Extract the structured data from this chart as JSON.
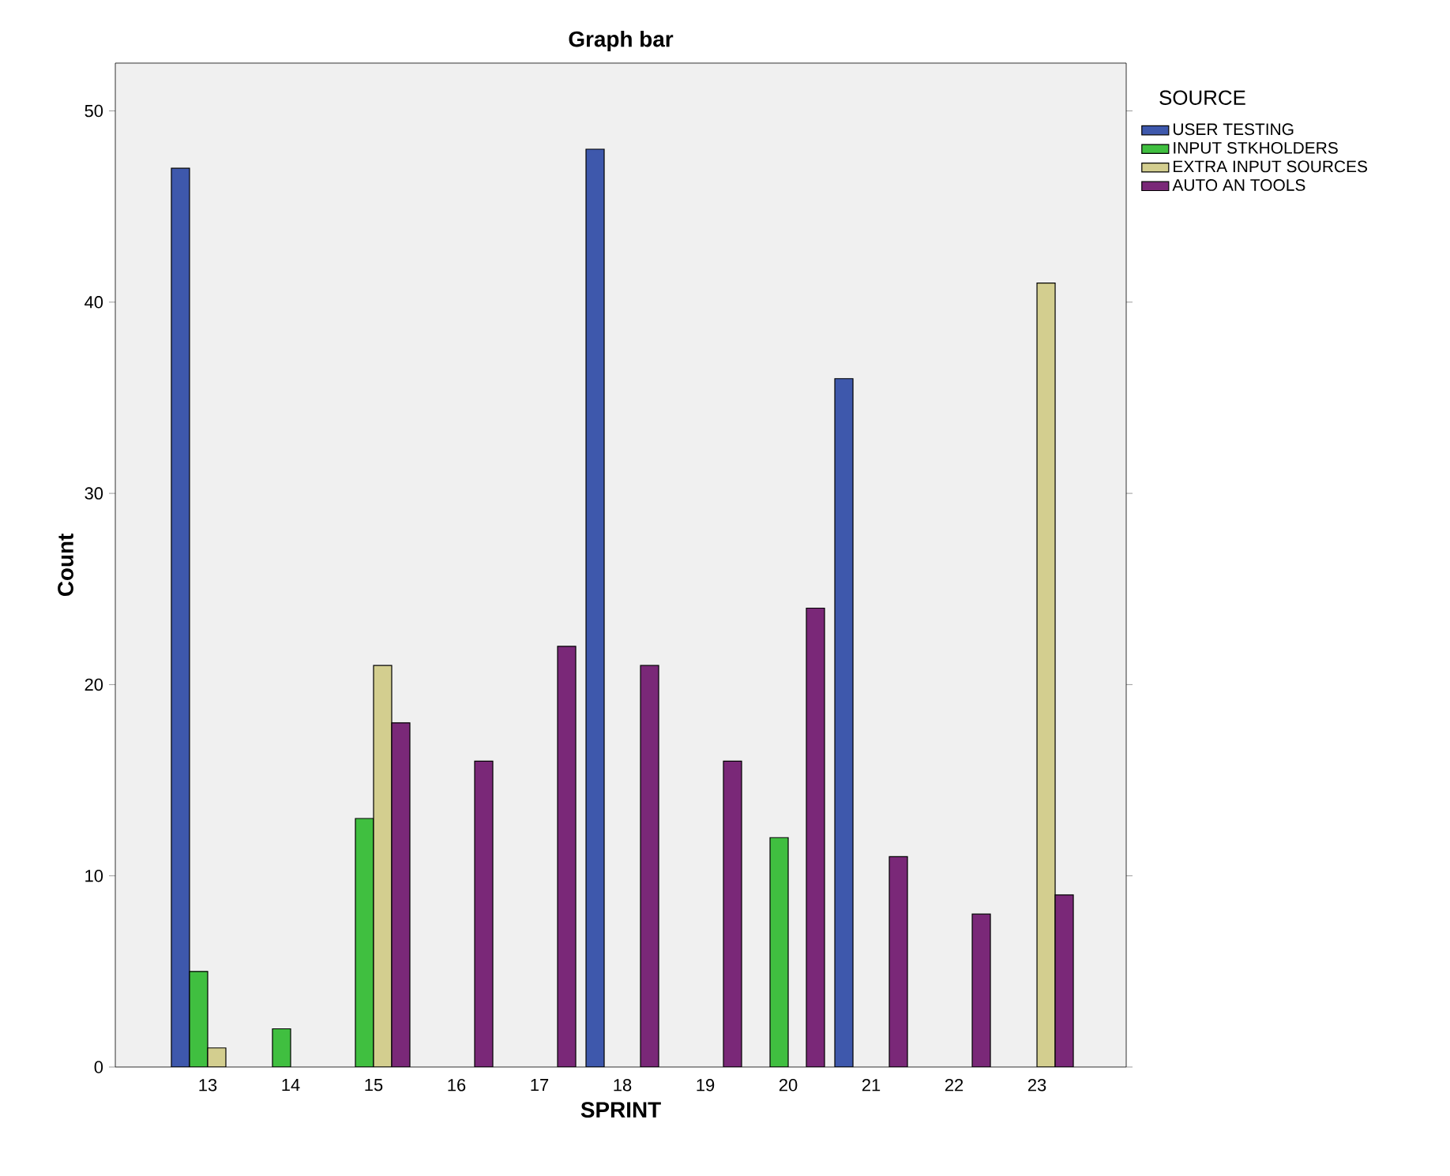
{
  "chart_data": {
    "type": "bar",
    "title": "Graph bar",
    "xlabel": "SPRINT",
    "ylabel": "Count",
    "legend_title": "SOURCE",
    "categories": [
      "13",
      "14",
      "15",
      "16",
      "17",
      "18",
      "19",
      "20",
      "21",
      "22",
      "23"
    ],
    "series": [
      {
        "name": "USER TESTING",
        "color": "#3e58ac",
        "values": [
          47,
          null,
          null,
          null,
          null,
          48,
          null,
          null,
          36,
          null,
          null
        ]
      },
      {
        "name": "INPUT STKHOLDERS",
        "color": "#40bf40",
        "values": [
          5,
          2,
          13,
          null,
          null,
          null,
          null,
          12,
          null,
          null,
          null
        ]
      },
      {
        "name": "EXTRA INPUT SOURCES",
        "color": "#d3ce8f",
        "values": [
          1,
          null,
          21,
          null,
          null,
          null,
          null,
          null,
          null,
          null,
          41
        ]
      },
      {
        "name": "AUTO AN TOOLS",
        "color": "#7a2878",
        "values": [
          null,
          null,
          18,
          16,
          22,
          21,
          16,
          24,
          11,
          8,
          9
        ]
      }
    ],
    "ylim": [
      0,
      52.5
    ],
    "yticks": [
      0,
      10,
      20,
      30,
      40,
      50
    ],
    "grid": false,
    "legend": "top right"
  }
}
